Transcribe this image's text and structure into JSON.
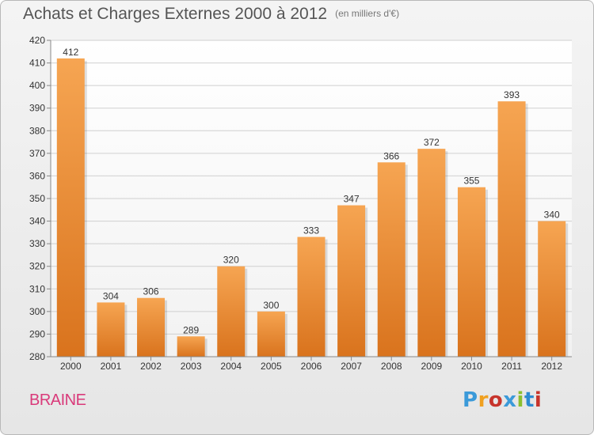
{
  "chart_data": {
    "type": "bar",
    "title": "Achats et Charges Externes 2000 à 2012",
    "subtitle": "(en milliers d'€)",
    "categories": [
      "2000",
      "2001",
      "2002",
      "2003",
      "2004",
      "2005",
      "2006",
      "2007",
      "2008",
      "2009",
      "2010",
      "2011",
      "2012"
    ],
    "values": [
      412,
      304,
      306,
      289,
      320,
      300,
      333,
      347,
      366,
      372,
      355,
      393,
      340
    ],
    "ylim": [
      280,
      420
    ],
    "yticks": [
      280,
      290,
      300,
      310,
      320,
      330,
      340,
      350,
      360,
      370,
      380,
      390,
      400,
      410,
      420
    ],
    "grid": true,
    "bar_color_top": "#f6a552",
    "bar_color_bottom": "#d9731d"
  },
  "footer": {
    "commune": "BRAINE",
    "logo_letters": [
      "P",
      "r",
      "o",
      "x",
      "i",
      "t",
      "i"
    ]
  }
}
